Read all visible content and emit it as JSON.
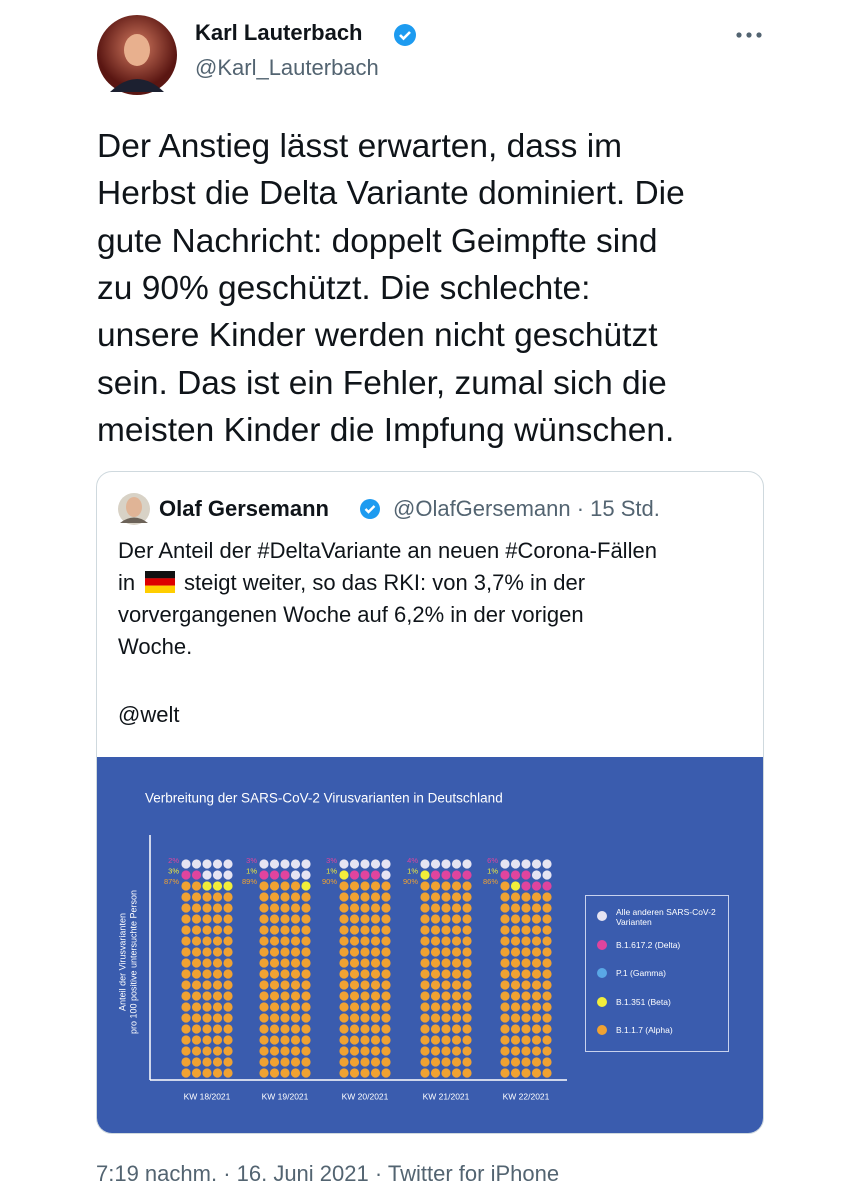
{
  "tweet": {
    "author": {
      "name": "Karl Lauterbach",
      "handle": "@Karl_Lauterbach"
    },
    "text_lines": [
      "Der Anstieg lässt erwarten, dass im",
      "Herbst die Delta Variante dominiert. Die",
      "gute Nachricht: doppelt Geimpfte sind",
      "zu 90% geschützt. Die schlechte:",
      "unsere Kinder werden nicht geschützt",
      "sein. Das ist ein Fehler, zumal sich die",
      "meisten Kinder die Impfung wünschen."
    ],
    "timestamp": "7:19 nachm. · 16. Juni 2021 · Twitter for iPhone"
  },
  "quoted_tweet": {
    "author": {
      "name": "Olaf Gersemann",
      "handle_line": "@OlafGersemann · 15 Std."
    },
    "text_lines": [
      "Der Anteil der #DeltaVariante an neuen #Corona-Fällen",
      "in",
      "steigt weiter, so das RKI: von 3,7% in der",
      "vorvergangenen Woche auf 6,2% in der vorigen",
      "Woche."
    ],
    "mention": "@welt"
  },
  "chart_data": {
    "type": "waffle",
    "title": "Verbreitung der SARS-CoV-2 Virusvarianten in Deutschland",
    "y_label": [
      "Anteil der Virusvarianten",
      "pro 100 positive untersuchte Person"
    ],
    "categories": [
      "KW 18/2021",
      "KW 19/2021",
      "KW 20/2021",
      "KW 21/2021",
      "KW 22/2021"
    ],
    "series": [
      {
        "name": "Alle anderen SARS-CoV-2 Varianten",
        "color": "#e6e4f2"
      },
      {
        "name": "B.1.617.2 (Delta)",
        "color": "#e0449e",
        "values": [
          2,
          3,
          3,
          4,
          6
        ],
        "value_labels": [
          "2%",
          "3%",
          "3%",
          "4%",
          "6%"
        ]
      },
      {
        "name": "P.1 (Gamma)",
        "color": "#5aa8e6"
      },
      {
        "name": "B.1.351 (Beta)",
        "color": "#f2ee3a",
        "values": [
          3,
          1,
          1,
          1,
          1
        ],
        "value_labels": [
          "3%",
          "1%",
          "1%",
          "1%",
          "1%"
        ]
      },
      {
        "name": "B.1.1.7 (Alpha)",
        "color": "#f0a232",
        "values": [
          87,
          89,
          90,
          90,
          86
        ],
        "value_labels": [
          "87%",
          "89%",
          "90%",
          "90%",
          "86%"
        ]
      }
    ]
  }
}
